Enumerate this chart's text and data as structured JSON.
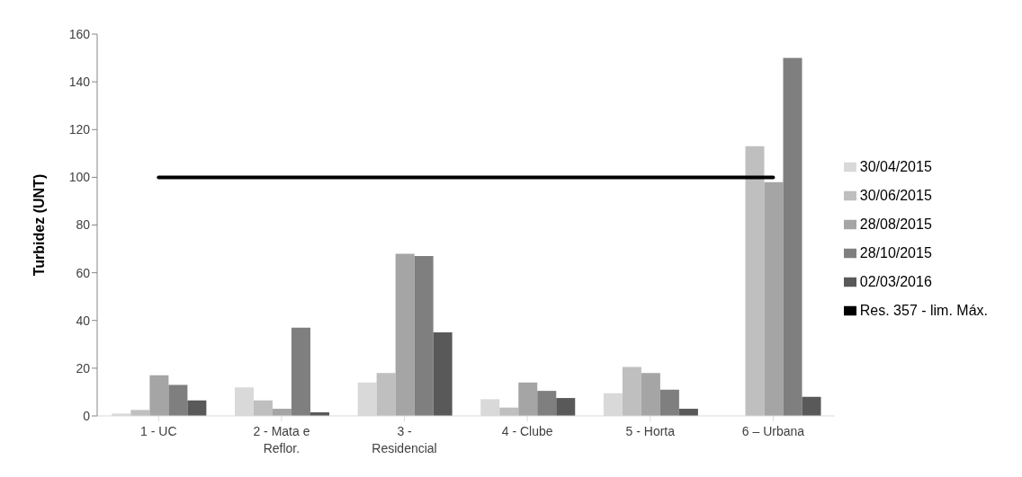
{
  "chart_data": {
    "type": "bar",
    "ylabel": "Turbidez (UNT)",
    "categories": [
      "1 - UC",
      "2 - Mata e Reflor.",
      "3 - Residencial",
      "4 - Clube",
      "5 - Horta",
      "6 – Urbana"
    ],
    "series": [
      {
        "name": "30/04/2015",
        "color": "#d9d9d9",
        "values": [
          1,
          12,
          14,
          7,
          9.5,
          null
        ]
      },
      {
        "name": "30/06/2015",
        "color": "#bfbfbf",
        "values": [
          2.5,
          6.5,
          18,
          3.5,
          20.5,
          113
        ]
      },
      {
        "name": "28/08/2015",
        "color": "#a5a5a5",
        "values": [
          17,
          3,
          68,
          14,
          18,
          98
        ]
      },
      {
        "name": "28/10/2015",
        "color": "#7f7f7f",
        "values": [
          13,
          37,
          67,
          10.5,
          11,
          150
        ]
      },
      {
        "name": "02/03/2016",
        "color": "#595959",
        "values": [
          6.5,
          1.5,
          35,
          7.5,
          3,
          8
        ]
      },
      {
        "name": "Res. 357 - lim. Máx.",
        "type": "line",
        "color": "#000000",
        "values": [
          100,
          100,
          100,
          100,
          100,
          100
        ]
      }
    ],
    "ylim": [
      0,
      160
    ],
    "yticks": [
      0,
      20,
      40,
      60,
      80,
      100,
      120,
      140,
      160
    ],
    "legend": "right",
    "marker": "none"
  }
}
